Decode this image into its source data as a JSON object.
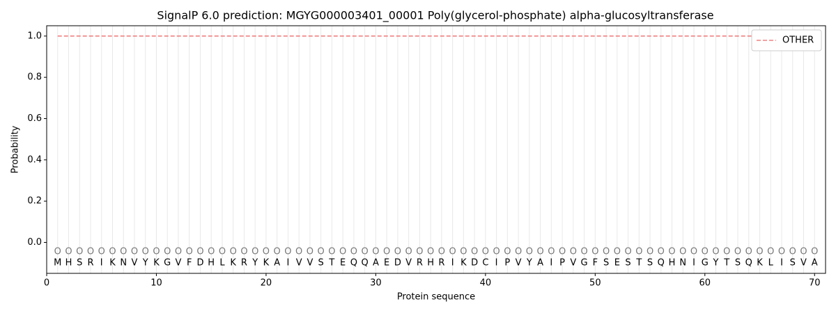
{
  "chart_data": {
    "type": "line",
    "title": "SignalP 6.0 prediction: MGYG000003401_00001 Poly(glycerol-phosphate) alpha-glucosyltransferase",
    "xlabel": "Protein sequence",
    "ylabel": "Probability",
    "x": [
      1,
      2,
      3,
      4,
      5,
      6,
      7,
      8,
      9,
      10,
      11,
      12,
      13,
      14,
      15,
      16,
      17,
      18,
      19,
      20,
      21,
      22,
      23,
      24,
      25,
      26,
      27,
      28,
      29,
      30,
      31,
      32,
      33,
      34,
      35,
      36,
      37,
      38,
      39,
      40,
      41,
      42,
      43,
      44,
      45,
      46,
      47,
      48,
      49,
      50,
      51,
      52,
      53,
      54,
      55,
      56,
      57,
      58,
      59,
      60,
      61,
      62,
      63,
      64,
      65,
      66,
      67,
      68,
      69,
      70
    ],
    "series": [
      {
        "name": "OTHER",
        "color": "#f08080",
        "dashed": true,
        "values": [
          1,
          1,
          1,
          1,
          1,
          1,
          1,
          1,
          1,
          1,
          1,
          1,
          1,
          1,
          1,
          1,
          1,
          1,
          1,
          1,
          1,
          1,
          1,
          1,
          1,
          1,
          1,
          1,
          1,
          1,
          1,
          1,
          1,
          1,
          1,
          1,
          1,
          1,
          1,
          1,
          1,
          1,
          1,
          1,
          1,
          1,
          1,
          1,
          1,
          1,
          1,
          1,
          1,
          1,
          1,
          1,
          1,
          1,
          1,
          1,
          1,
          1,
          1,
          1,
          1,
          1,
          1,
          1,
          1,
          1
        ]
      }
    ],
    "sequence": [
      "M",
      "H",
      "S",
      "R",
      "I",
      "K",
      "N",
      "V",
      "Y",
      "K",
      "G",
      "V",
      "F",
      "D",
      "H",
      "L",
      "K",
      "R",
      "Y",
      "K",
      "A",
      "I",
      "V",
      "V",
      "S",
      "T",
      "E",
      "Q",
      "Q",
      "A",
      "E",
      "D",
      "V",
      "R",
      "H",
      "R",
      "I",
      "K",
      "D",
      "C",
      "I",
      "P",
      "V",
      "Y",
      "A",
      "I",
      "P",
      "V",
      "G",
      "F",
      "S",
      "E",
      "S",
      "T",
      "S",
      "Q",
      "H",
      "N",
      "I",
      "G",
      "Y",
      "T",
      "S",
      "Q",
      "K",
      "L",
      "I",
      "S",
      "V",
      "A"
    ],
    "states": [
      "O",
      "O",
      "O",
      "O",
      "O",
      "O",
      "O",
      "O",
      "O",
      "O",
      "O",
      "O",
      "O",
      "O",
      "O",
      "O",
      "O",
      "O",
      "O",
      "O",
      "O",
      "O",
      "O",
      "O",
      "O",
      "O",
      "O",
      "O",
      "O",
      "O",
      "O",
      "O",
      "O",
      "O",
      "O",
      "O",
      "O",
      "O",
      "O",
      "O",
      "O",
      "O",
      "O",
      "O",
      "O",
      "O",
      "O",
      "O",
      "O",
      "O",
      "O",
      "O",
      "O",
      "O",
      "O",
      "O",
      "O",
      "O",
      "O",
      "O",
      "O",
      "O",
      "O",
      "O",
      "O",
      "O",
      "O",
      "O",
      "O",
      "O"
    ],
    "xlim": [
      0,
      71
    ],
    "ylim": [
      -0.15,
      1.05
    ],
    "xticks": [
      0,
      10,
      20,
      30,
      40,
      50,
      60,
      70
    ],
    "yticks": [
      {
        "value": 0,
        "label": "0.0"
      },
      0.2,
      0.4,
      0.6,
      0.8,
      {
        "value": 1,
        "label": "1.0"
      }
    ],
    "grid": true,
    "legend": "upper right"
  }
}
